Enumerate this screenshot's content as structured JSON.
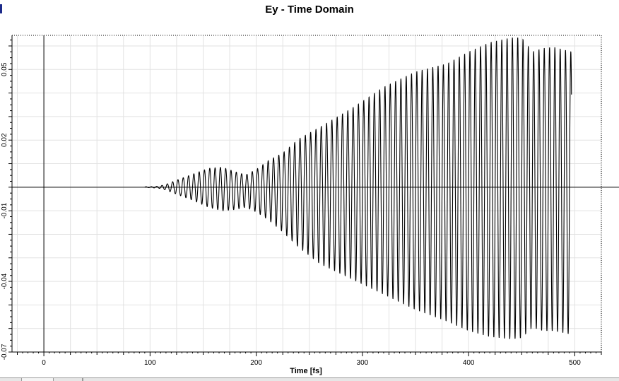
{
  "chart_data": {
    "type": "line",
    "title": "Ey - Time Domain",
    "xlabel": "Time [fs]",
    "ylabel": "",
    "xlim": [
      -30,
      525
    ],
    "ylim": [
      -0.07,
      0.0645
    ],
    "x_ticks": [
      0,
      100,
      200,
      300,
      400,
      500
    ],
    "x_tick_labels": [
      "0",
      "100",
      "200",
      "300",
      "400",
      "500"
    ],
    "y_ticks": [
      0.05,
      0.02,
      -0.01,
      -0.04,
      -0.07
    ],
    "y_tick_labels": [
      "0.05",
      "0.02",
      "-0.01",
      "-0.04",
      "-0.07"
    ],
    "grid": true,
    "legend": "none",
    "series": [
      {
        "color": "#000000",
        "t_start": 95,
        "t_end": 497,
        "period_fs": 5.0,
        "envelope": {
          "t": [
            95,
            100,
            108,
            115,
            125,
            140,
            155,
            168,
            180,
            190,
            200,
            212,
            225,
            240,
            260,
            290,
            320,
            350,
            380,
            400,
            420,
            440,
            450,
            460,
            470,
            480,
            497
          ],
          "positive": [
            0.0002,
            0.0002,
            0.0004,
            0.0012,
            0.003,
            0.0055,
            0.008,
            0.0085,
            0.0066,
            0.0052,
            0.0075,
            0.0115,
            0.0145,
            0.0205,
            0.0255,
            0.0335,
            0.0425,
            0.049,
            0.0525,
            0.0575,
            0.0615,
            0.0635,
            0.0635,
            0.0575,
            0.059,
            0.0595,
            0.0575
          ],
          "negative": [
            -0.0002,
            -0.0002,
            -0.0004,
            -0.0012,
            -0.003,
            -0.0055,
            -0.0085,
            -0.01,
            -0.0095,
            -0.0085,
            -0.0105,
            -0.014,
            -0.019,
            -0.0255,
            -0.0325,
            -0.039,
            -0.0455,
            -0.052,
            -0.057,
            -0.061,
            -0.0635,
            -0.0645,
            -0.064,
            -0.0595,
            -0.061,
            -0.061,
            -0.0625
          ]
        }
      }
    ]
  },
  "colors": {
    "plot_border": "#000000",
    "grid": "#e2e2e2",
    "title_mark": "#1c2a8a"
  }
}
